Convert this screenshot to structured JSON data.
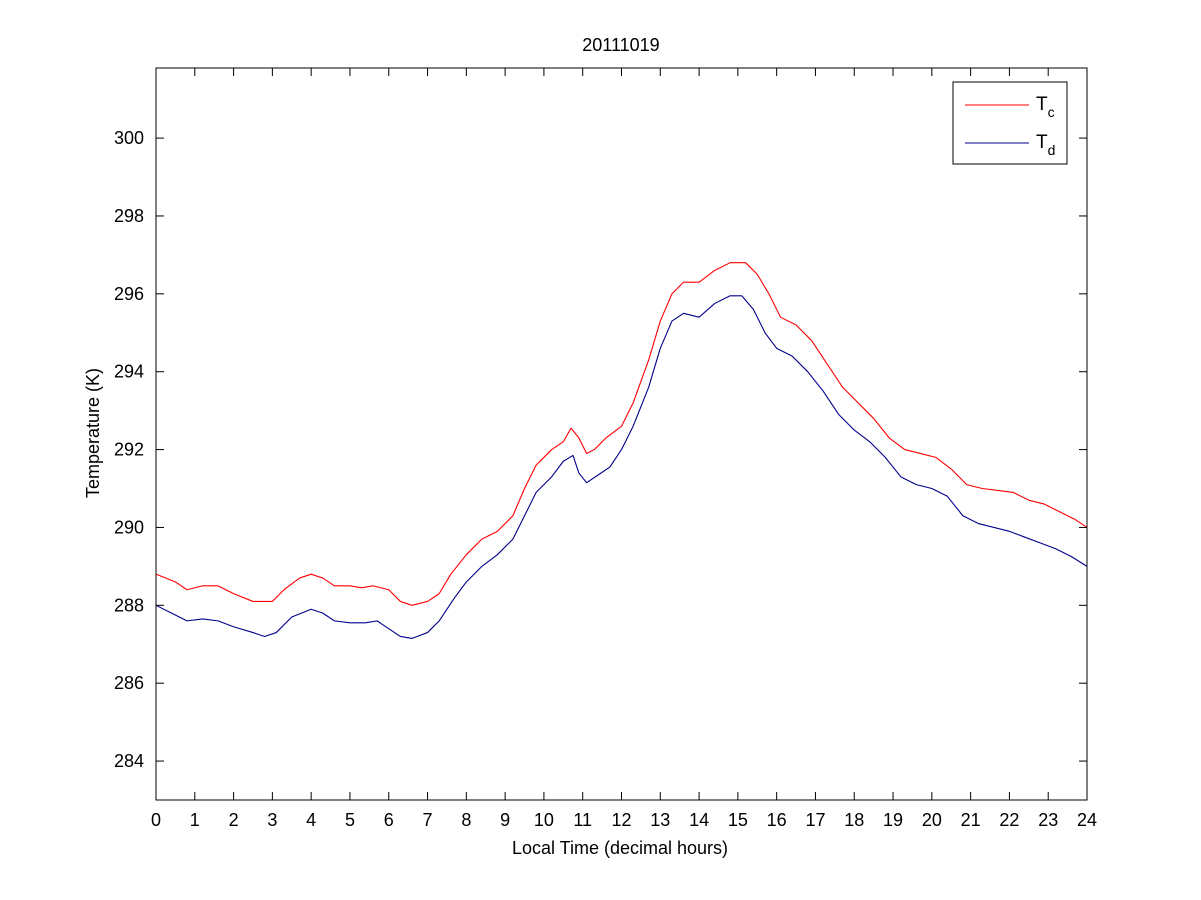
{
  "chart_data": {
    "type": "line",
    "title": "20111019",
    "xlabel": "Local Time (decimal hours)",
    "ylabel": "Temperature (K)",
    "xlim": [
      0,
      24
    ],
    "ylim": [
      283,
      301.8
    ],
    "xticks": [
      0,
      1,
      2,
      3,
      4,
      5,
      6,
      7,
      8,
      9,
      10,
      11,
      12,
      13,
      14,
      15,
      16,
      17,
      18,
      19,
      20,
      21,
      22,
      23,
      24
    ],
    "yticks": [
      284,
      286,
      288,
      290,
      292,
      294,
      296,
      298,
      300
    ],
    "grid": false,
    "legend_position": "top-right",
    "series": [
      {
        "name": "T_c",
        "legend_main": "T",
        "legend_sub": "c",
        "color": "#ff0000",
        "points": [
          [
            0,
            288.8
          ],
          [
            0.5,
            288.6
          ],
          [
            0.8,
            288.4
          ],
          [
            1.2,
            288.5
          ],
          [
            1.6,
            288.5
          ],
          [
            2.0,
            288.3
          ],
          [
            2.5,
            288.1
          ],
          [
            3.0,
            288.1
          ],
          [
            3.3,
            288.4
          ],
          [
            3.7,
            288.7
          ],
          [
            4.0,
            288.8
          ],
          [
            4.3,
            288.7
          ],
          [
            4.6,
            288.5
          ],
          [
            5.0,
            288.5
          ],
          [
            5.3,
            288.45
          ],
          [
            5.6,
            288.5
          ],
          [
            6.0,
            288.4
          ],
          [
            6.3,
            288.1
          ],
          [
            6.6,
            288.0
          ],
          [
            7.0,
            288.1
          ],
          [
            7.3,
            288.3
          ],
          [
            7.6,
            288.8
          ],
          [
            8.0,
            289.3
          ],
          [
            8.4,
            289.7
          ],
          [
            8.8,
            289.9
          ],
          [
            9.2,
            290.3
          ],
          [
            9.5,
            291.0
          ],
          [
            9.8,
            291.6
          ],
          [
            10.2,
            292.0
          ],
          [
            10.5,
            292.2
          ],
          [
            10.7,
            292.55
          ],
          [
            10.9,
            292.3
          ],
          [
            11.1,
            291.9
          ],
          [
            11.3,
            292.0
          ],
          [
            11.6,
            292.3
          ],
          [
            12.0,
            292.6
          ],
          [
            12.3,
            293.2
          ],
          [
            12.7,
            294.3
          ],
          [
            13.0,
            295.3
          ],
          [
            13.3,
            296.0
          ],
          [
            13.6,
            296.3
          ],
          [
            14.0,
            296.3
          ],
          [
            14.4,
            296.6
          ],
          [
            14.8,
            296.8
          ],
          [
            15.2,
            296.8
          ],
          [
            15.5,
            296.5
          ],
          [
            15.8,
            296.0
          ],
          [
            16.1,
            295.4
          ],
          [
            16.5,
            295.2
          ],
          [
            16.9,
            294.8
          ],
          [
            17.3,
            294.2
          ],
          [
            17.7,
            293.6
          ],
          [
            18.1,
            293.2
          ],
          [
            18.5,
            292.8
          ],
          [
            18.9,
            292.3
          ],
          [
            19.3,
            292.0
          ],
          [
            19.7,
            291.9
          ],
          [
            20.1,
            291.8
          ],
          [
            20.5,
            291.5
          ],
          [
            20.9,
            291.1
          ],
          [
            21.3,
            291.0
          ],
          [
            21.7,
            290.95
          ],
          [
            22.1,
            290.9
          ],
          [
            22.5,
            290.7
          ],
          [
            22.9,
            290.6
          ],
          [
            23.3,
            290.4
          ],
          [
            23.7,
            290.2
          ],
          [
            24.0,
            290.0
          ]
        ]
      },
      {
        "name": "T_d",
        "legend_main": "T",
        "legend_sub": "d",
        "color": "#00008b",
        "points": [
          [
            0,
            288.0
          ],
          [
            0.4,
            287.8
          ],
          [
            0.8,
            287.6
          ],
          [
            1.2,
            287.65
          ],
          [
            1.6,
            287.6
          ],
          [
            2.0,
            287.45
          ],
          [
            2.5,
            287.3
          ],
          [
            2.8,
            287.2
          ],
          [
            3.1,
            287.3
          ],
          [
            3.5,
            287.7
          ],
          [
            4.0,
            287.9
          ],
          [
            4.3,
            287.8
          ],
          [
            4.6,
            287.6
          ],
          [
            5.0,
            287.55
          ],
          [
            5.4,
            287.55
          ],
          [
            5.7,
            287.6
          ],
          [
            6.0,
            287.4
          ],
          [
            6.3,
            287.2
          ],
          [
            6.6,
            287.15
          ],
          [
            7.0,
            287.3
          ],
          [
            7.3,
            287.6
          ],
          [
            7.7,
            288.2
          ],
          [
            8.0,
            288.6
          ],
          [
            8.4,
            289.0
          ],
          [
            8.8,
            289.3
          ],
          [
            9.2,
            289.7
          ],
          [
            9.5,
            290.3
          ],
          [
            9.8,
            290.9
          ],
          [
            10.2,
            291.3
          ],
          [
            10.5,
            291.7
          ],
          [
            10.75,
            291.85
          ],
          [
            10.9,
            291.4
          ],
          [
            11.1,
            291.15
          ],
          [
            11.4,
            291.35
          ],
          [
            11.7,
            291.55
          ],
          [
            12.0,
            292.0
          ],
          [
            12.3,
            292.6
          ],
          [
            12.7,
            293.6
          ],
          [
            13.0,
            294.6
          ],
          [
            13.3,
            295.3
          ],
          [
            13.6,
            295.5
          ],
          [
            14.0,
            295.4
          ],
          [
            14.4,
            295.75
          ],
          [
            14.8,
            295.95
          ],
          [
            15.1,
            295.95
          ],
          [
            15.4,
            295.6
          ],
          [
            15.7,
            295.0
          ],
          [
            16.0,
            294.6
          ],
          [
            16.4,
            294.4
          ],
          [
            16.8,
            294.0
          ],
          [
            17.2,
            293.5
          ],
          [
            17.6,
            292.9
          ],
          [
            18.0,
            292.5
          ],
          [
            18.4,
            292.2
          ],
          [
            18.8,
            291.8
          ],
          [
            19.2,
            291.3
          ],
          [
            19.6,
            291.1
          ],
          [
            20.0,
            291.0
          ],
          [
            20.4,
            290.8
          ],
          [
            20.8,
            290.3
          ],
          [
            21.2,
            290.1
          ],
          [
            21.6,
            290.0
          ],
          [
            22.0,
            289.9
          ],
          [
            22.4,
            289.75
          ],
          [
            22.8,
            289.6
          ],
          [
            23.2,
            289.45
          ],
          [
            23.6,
            289.25
          ],
          [
            24.0,
            289.0
          ]
        ]
      }
    ]
  }
}
